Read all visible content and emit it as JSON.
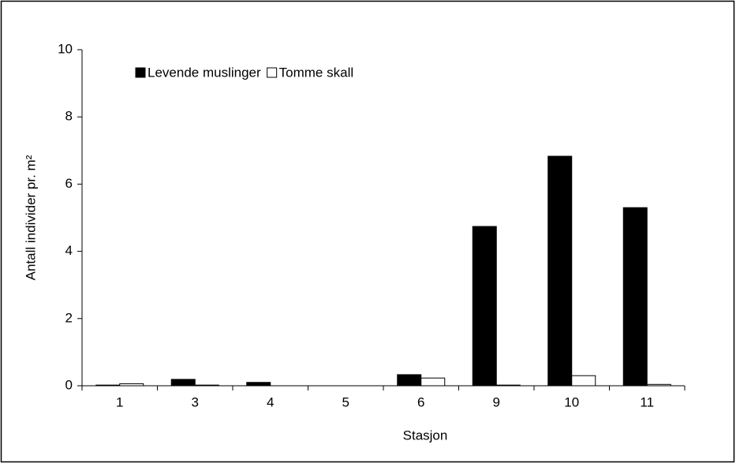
{
  "chart_data": {
    "type": "bar",
    "x_label": "Stasjon",
    "y_label": "Antall individer pr. m²",
    "categories": [
      "1",
      "3",
      "4",
      "5",
      "6",
      "9",
      "10",
      "11"
    ],
    "series": [
      {
        "name": "Levende muslinger",
        "color": "#000000",
        "values": [
          0.02,
          0.19,
          0.1,
          0,
          0.33,
          4.74,
          6.83,
          5.3
        ]
      },
      {
        "name": "Tomme skall",
        "color": "#ffffff",
        "values": [
          0.06,
          0.02,
          0,
          0,
          0.23,
          0.02,
          0.3,
          0.04
        ]
      }
    ],
    "ylim": [
      0,
      10
    ],
    "yticks": [
      0,
      2,
      4,
      6,
      8,
      10
    ],
    "grid": false,
    "legend": "top-left"
  }
}
